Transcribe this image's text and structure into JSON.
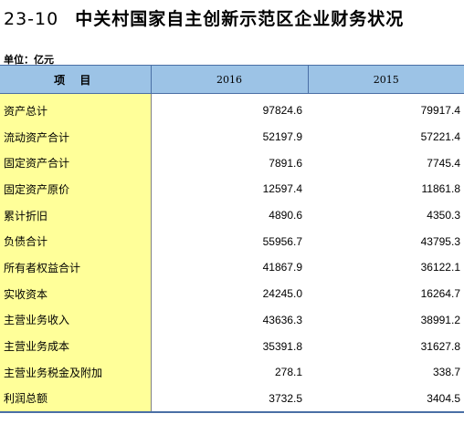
{
  "title": {
    "number": "23-10",
    "text": "中关村国家自主创新示范区企业财务状况"
  },
  "unit": "单位：亿元",
  "table": {
    "headers": {
      "item": "项 目",
      "year1": "2016",
      "year2": "2015"
    },
    "rows": [
      {
        "label": "资产总计",
        "v2016": "97824.6",
        "v2015": "79917.4"
      },
      {
        "label": "流动资产合计",
        "v2016": "52197.9",
        "v2015": "57221.4"
      },
      {
        "label": "固定资产合计",
        "v2016": "7891.6",
        "v2015": "7745.4"
      },
      {
        "label": "固定资产原价",
        "v2016": "12597.4",
        "v2015": "11861.8"
      },
      {
        "label": "累计折旧",
        "v2016": "4890.6",
        "v2015": "4350.3"
      },
      {
        "label": "负债合计",
        "v2016": "55956.7",
        "v2015": "43795.3"
      },
      {
        "label": "所有者权益合计",
        "v2016": "41867.9",
        "v2015": "36122.1"
      },
      {
        "label": "实收资本",
        "v2016": "24245.0",
        "v2015": "16264.7"
      },
      {
        "label": "主营业务收入",
        "v2016": "43636.3",
        "v2015": "38991.2"
      },
      {
        "label": "主营业务成本",
        "v2016": "35391.8",
        "v2015": "31627.8"
      },
      {
        "label": "主营业务税金及附加",
        "v2016": "278.1",
        "v2015": "338.7"
      },
      {
        "label": "利润总额",
        "v2016": "3732.5",
        "v2015": "3404.5"
      }
    ]
  },
  "colors": {
    "header_bg": "#9cc3e6",
    "label_bg": "#ffff99",
    "rule": "#4a6fa5"
  }
}
